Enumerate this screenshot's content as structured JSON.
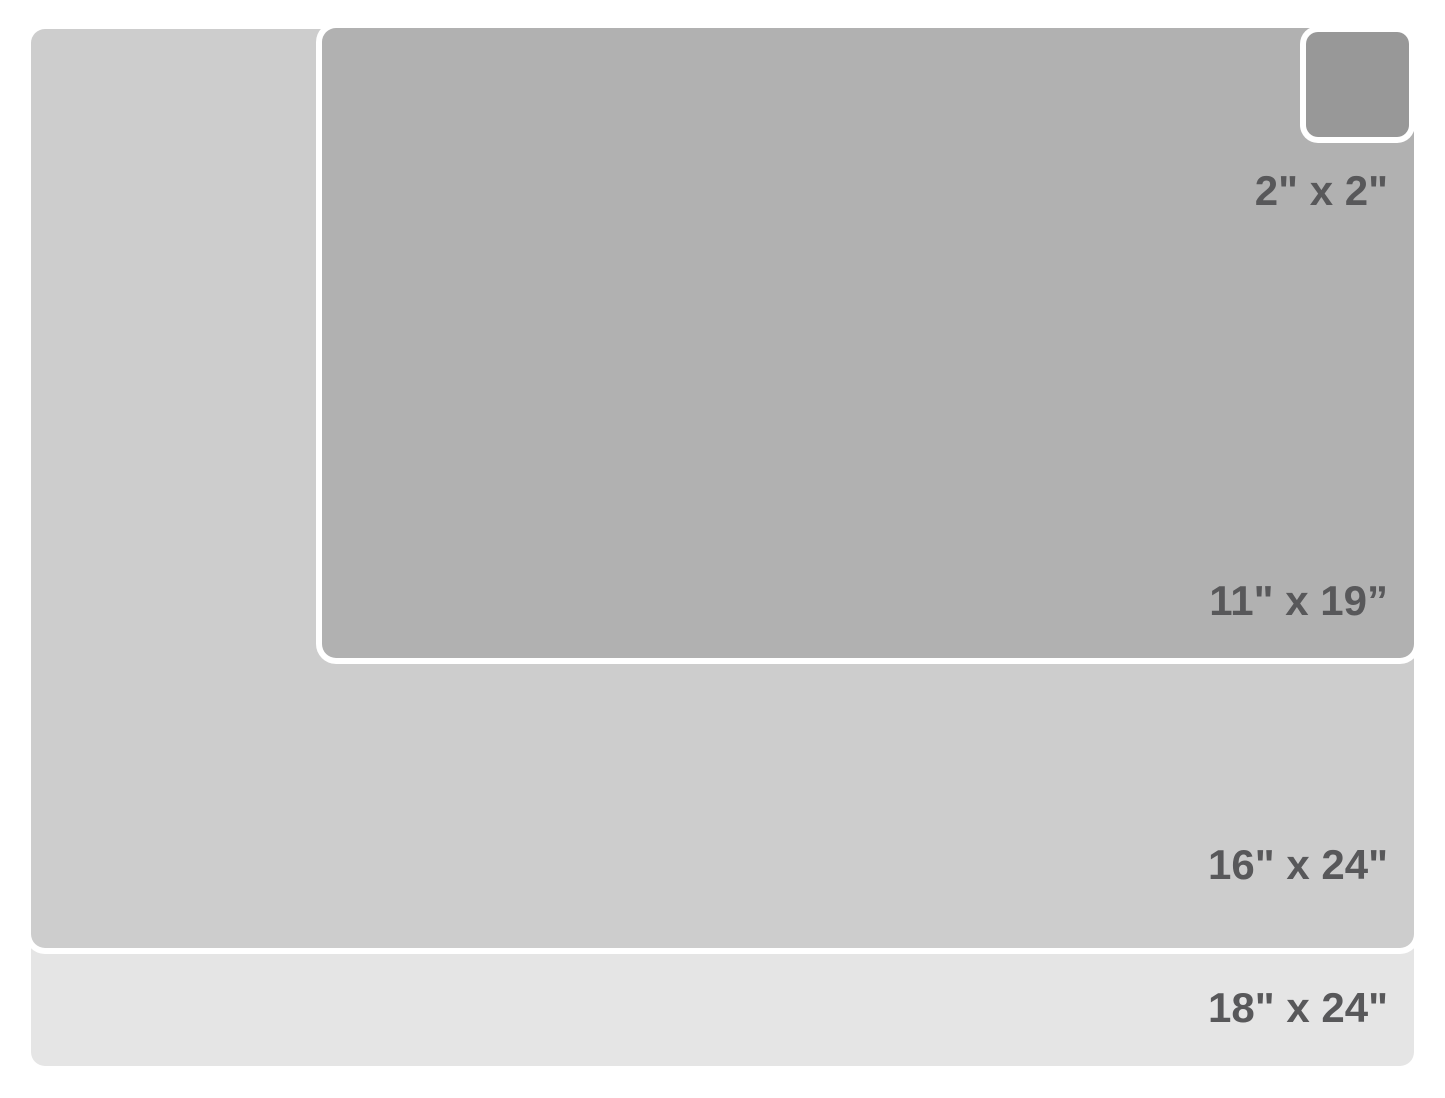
{
  "diagram": {
    "type": "size-comparison",
    "unit": "inches"
  },
  "colors": {
    "background": "#ffffff",
    "outline": "#ffffff",
    "text": "#58585a",
    "fill_18x24": "#e5e5e5",
    "fill_16x24": "#cdcdcd",
    "fill_11x19": "#b1b1b1",
    "fill_2x2": "#989898"
  },
  "sizes": {
    "s18x24": {
      "label": "18\" x 24\""
    },
    "s16x24": {
      "label": "16\" x 24\""
    },
    "s11x19": {
      "label": "11\" x 19”"
    },
    "s2x2": {
      "label": "2\" x 2\""
    }
  }
}
